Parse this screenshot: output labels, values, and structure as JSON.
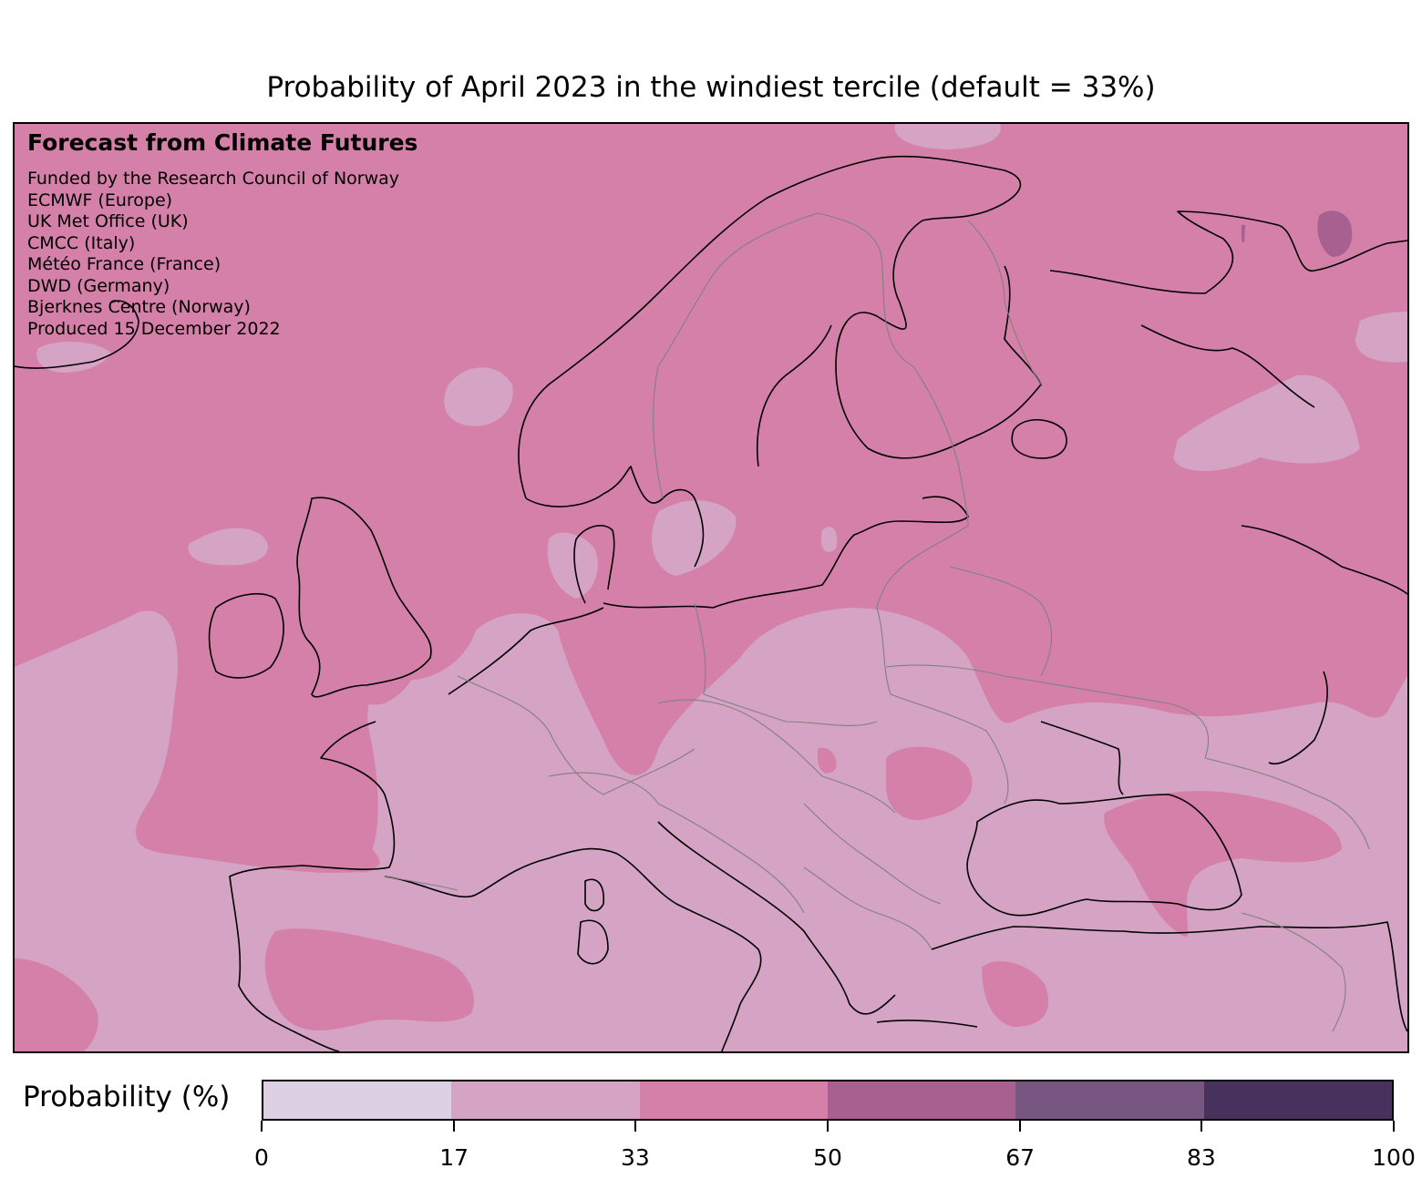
{
  "title": "Probability of April 2023 in the windiest tercile (default = 33%)",
  "credits": {
    "heading": "Forecast from Climate Futures",
    "lines": [
      "Funded by the Research Council of Norway",
      "ECMWF (Europe)",
      "UK Met Office (UK)",
      "CMCC (Italy)",
      "Météo France (France)",
      "DWD (Germany)",
      "Bjerknes Centre (Norway)",
      "Produced 15 December 2022"
    ]
  },
  "colorbar": {
    "label": "Probability (%)",
    "ticks": [
      "0",
      "17",
      "33",
      "50",
      "67",
      "83",
      "100"
    ],
    "tick_values": [
      0,
      17,
      33,
      50,
      67,
      83,
      100
    ],
    "colors": [
      "#ddd0e2",
      "#d5a3c3",
      "#d580a8",
      "#a86090",
      "#775782",
      "#46325d"
    ]
  },
  "map": {
    "region": "Europe",
    "color_low": "#d5a3c3",
    "color_mid": "#d580a8",
    "color_high": "#a86090"
  }
}
